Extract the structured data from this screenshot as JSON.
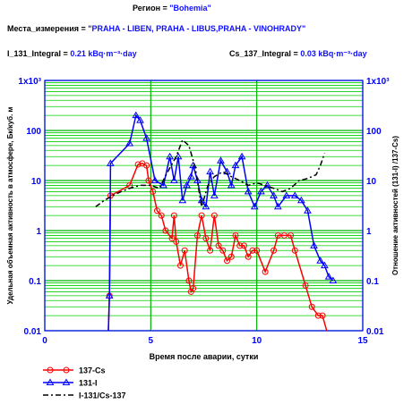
{
  "header": {
    "region_label": "Регион =",
    "region_value": "\"Bohemia\"",
    "places_label": "Места_измерения =",
    "places_value": "\"PRAHA - LIBEN, PRAHA - LIBUS,PRAHA - VINOHRADY\"",
    "i131_label": "I_131_Integral =",
    "i131_value": "0.21",
    "i131_unit": "kBq·m⁻³·day",
    "cs137_label": "Cs_137_Integral =",
    "cs137_value": "0.03",
    "cs137_unit": "kBq·m⁻³·day"
  },
  "colors": {
    "plot_bg": "#ffffff",
    "minor_grid": "#00d000",
    "major_grid": "#00b000",
    "cs137": "#ff0000",
    "i131": "#0000ff",
    "ratio": "#000000",
    "axis_text": "#0000ff"
  },
  "chart_data": {
    "type": "line",
    "xlabel": "Время после аварии, сутки",
    "ylabel": "Удельная объемная активность в атмосфере, Бк/куб. м",
    "y2label": "Отношение активностей (131-I) /137-Cs)",
    "xlim": [
      0,
      15
    ],
    "ylim": [
      0.01,
      1000
    ],
    "yscale": "log",
    "y2lim": [
      0.01,
      1000
    ],
    "grid": true,
    "legend_position": "bottom-left",
    "x_ticks": [
      "0",
      "5",
      "10",
      "15"
    ],
    "y_ticks": [
      "0.01",
      "0.1",
      "1",
      "10",
      "100",
      "1x10³"
    ],
    "series": [
      {
        "name": "137-Cs",
        "color": "#ff0000",
        "marker": "circle",
        "points": [
          [
            3.0,
            0.01
          ],
          [
            3.05,
            0.05
          ],
          [
            3.1,
            5
          ],
          [
            4.0,
            8
          ],
          [
            4.4,
            21
          ],
          [
            4.6,
            22
          ],
          [
            4.8,
            20
          ],
          [
            4.9,
            10
          ],
          [
            5.1,
            6
          ],
          [
            5.3,
            2.5
          ],
          [
            5.5,
            2
          ],
          [
            5.7,
            1
          ],
          [
            6.0,
            0.7
          ],
          [
            6.1,
            2.0
          ],
          [
            6.2,
            0.6
          ],
          [
            6.4,
            0.2
          ],
          [
            6.6,
            0.4
          ],
          [
            6.8,
            0.1
          ],
          [
            6.9,
            0.06
          ],
          [
            7.0,
            0.07
          ],
          [
            7.2,
            0.8
          ],
          [
            7.4,
            2.0
          ],
          [
            7.6,
            0.7
          ],
          [
            7.8,
            0.4
          ],
          [
            8.0,
            2.0
          ],
          [
            8.2,
            0.5
          ],
          [
            8.4,
            0.4
          ],
          [
            8.6,
            0.25
          ],
          [
            8.8,
            0.3
          ],
          [
            9.0,
            0.8
          ],
          [
            9.2,
            0.5
          ],
          [
            9.4,
            0.5
          ],
          [
            9.6,
            0.3
          ],
          [
            9.8,
            0.4
          ],
          [
            10.0,
            0.4
          ],
          [
            10.4,
            0.15
          ],
          [
            10.8,
            0.4
          ],
          [
            11.0,
            0.8
          ],
          [
            11.3,
            0.8
          ],
          [
            11.6,
            0.8
          ],
          [
            11.8,
            0.4
          ],
          [
            12.3,
            0.08
          ],
          [
            12.6,
            0.03
          ],
          [
            12.9,
            0.02
          ],
          [
            13.1,
            0.02
          ],
          [
            13.3,
            0.01
          ]
        ]
      },
      {
        "name": "131-I",
        "color": "#0000ff",
        "marker": "triangle",
        "points": [
          [
            3.0,
            0.01
          ],
          [
            3.05,
            0.05
          ],
          [
            3.1,
            22
          ],
          [
            4.0,
            55
          ],
          [
            4.3,
            200
          ],
          [
            4.5,
            160
          ],
          [
            4.8,
            70
          ],
          [
            5.2,
            10
          ],
          [
            5.6,
            8
          ],
          [
            5.9,
            30
          ],
          [
            6.1,
            10
          ],
          [
            6.3,
            30
          ],
          [
            6.5,
            4
          ],
          [
            6.7,
            8
          ],
          [
            6.9,
            12
          ],
          [
            7.0,
            20
          ],
          [
            7.2,
            10
          ],
          [
            7.4,
            4
          ],
          [
            7.6,
            3
          ],
          [
            7.8,
            15
          ],
          [
            8.0,
            5
          ],
          [
            8.3,
            25
          ],
          [
            8.6,
            15
          ],
          [
            8.8,
            8
          ],
          [
            9.0,
            20
          ],
          [
            9.3,
            30
          ],
          [
            9.6,
            6
          ],
          [
            9.9,
            3
          ],
          [
            10.2,
            6
          ],
          [
            10.5,
            8
          ],
          [
            10.8,
            5
          ],
          [
            11.0,
            3
          ],
          [
            11.4,
            5
          ],
          [
            11.8,
            5
          ],
          [
            12.1,
            4
          ],
          [
            12.4,
            2.5
          ],
          [
            12.7,
            0.5
          ],
          [
            13.0,
            0.25
          ],
          [
            13.2,
            0.2
          ],
          [
            13.4,
            0.12
          ],
          [
            13.6,
            0.1
          ]
        ]
      },
      {
        "name": "I-131/Cs-137",
        "color": "#000000",
        "marker": "none",
        "style": "dash-dot",
        "points": [
          [
            2.4,
            3
          ],
          [
            2.8,
            4
          ],
          [
            3.2,
            5
          ],
          [
            3.6,
            6
          ],
          [
            4.0,
            7
          ],
          [
            4.5,
            8
          ],
          [
            5.0,
            8
          ],
          [
            5.4,
            7
          ],
          [
            5.8,
            15
          ],
          [
            6.2,
            30
          ],
          [
            6.5,
            65
          ],
          [
            6.8,
            50
          ],
          [
            7.1,
            18
          ],
          [
            7.4,
            3
          ],
          [
            7.7,
            8
          ],
          [
            8.0,
            12
          ],
          [
            8.4,
            15
          ],
          [
            8.8,
            12
          ],
          [
            9.2,
            10
          ],
          [
            9.6,
            8
          ],
          [
            10.0,
            9
          ],
          [
            10.4,
            8
          ],
          [
            10.8,
            7
          ],
          [
            11.2,
            6
          ],
          [
            11.6,
            7
          ],
          [
            12.0,
            10
          ],
          [
            12.4,
            11
          ],
          [
            12.8,
            13
          ],
          [
            13.0,
            20
          ],
          [
            13.2,
            35
          ]
        ]
      }
    ]
  }
}
